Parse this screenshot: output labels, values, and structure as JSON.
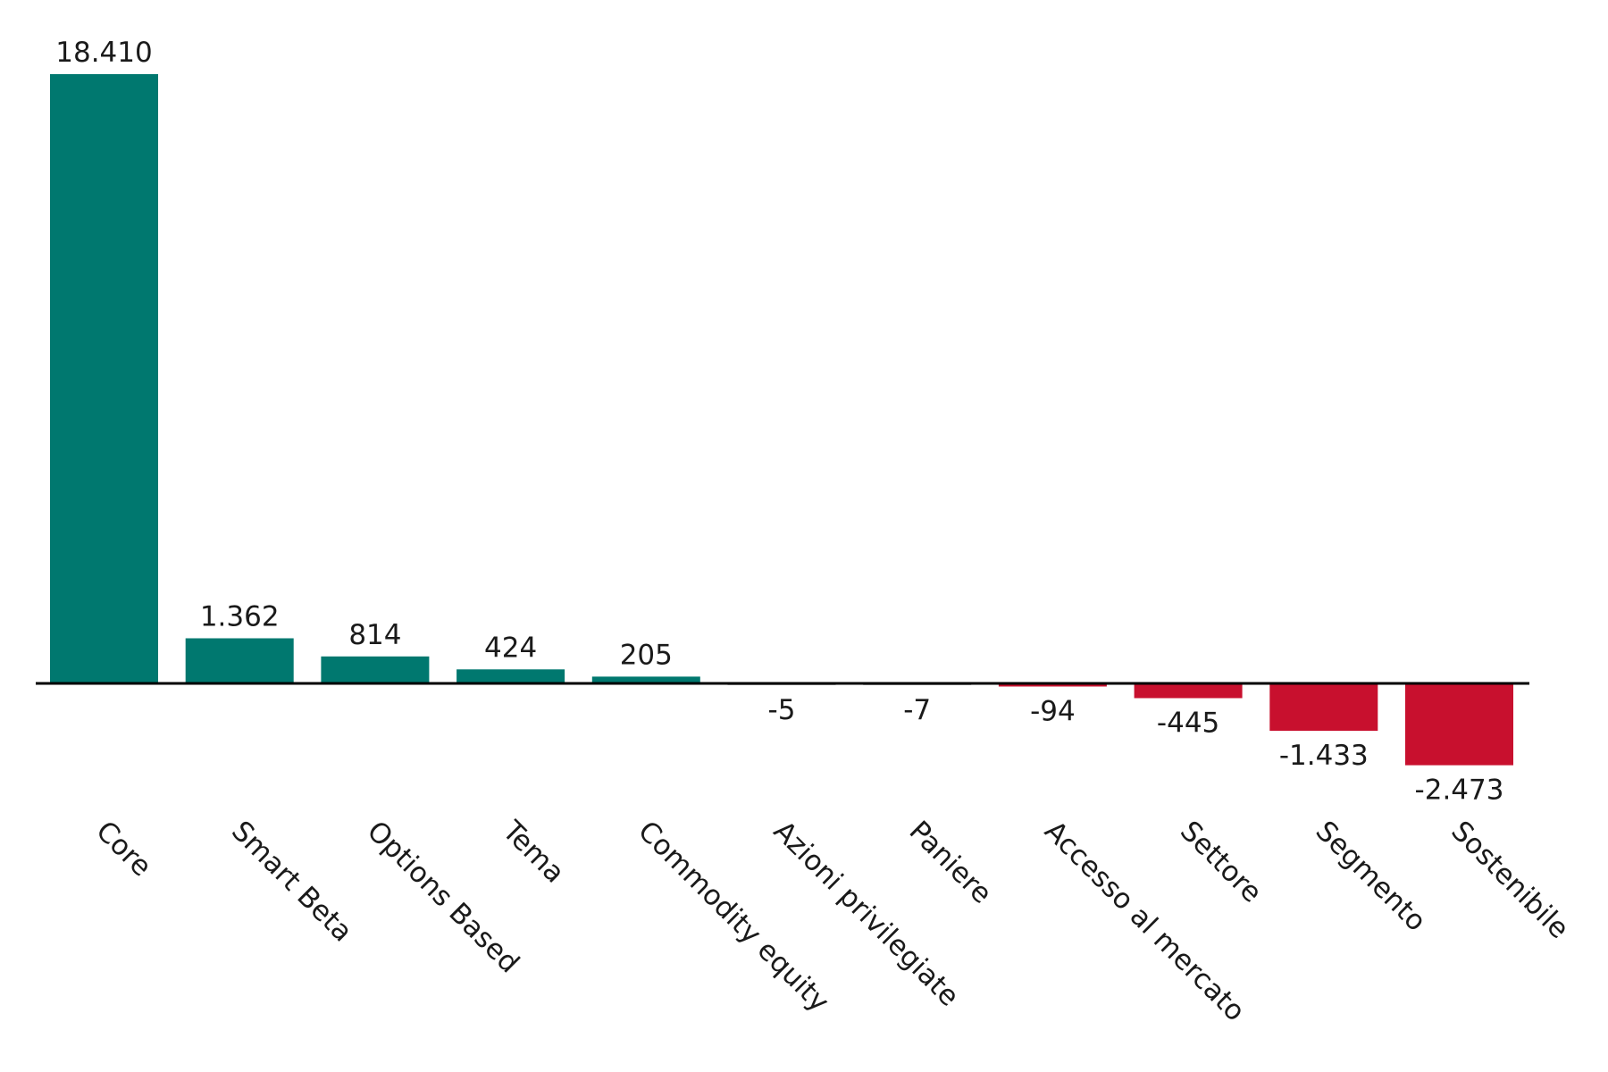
{
  "chart_data": {
    "type": "bar",
    "title": "",
    "xlabel": "",
    "ylabel": "",
    "categories": [
      "Core",
      "Smart Beta",
      "Options Based",
      "Tema",
      "Commodity equity",
      "Azioni privilegiate",
      "Paniere",
      "Accesso al mercato",
      "Settore",
      "Segmento",
      "Sostenibile"
    ],
    "values": [
      18410,
      1362,
      814,
      424,
      205,
      -5,
      -7,
      -94,
      -445,
      -1433,
      -2473
    ],
    "value_labels": [
      "18.410",
      "1.362",
      "814",
      "424",
      "205",
      "-5",
      "-7",
      "-94",
      "-445",
      "-1.433",
      "-2.473"
    ],
    "ylim": [
      -2473,
      18410
    ],
    "grid": false,
    "legend": "none",
    "colors": {
      "positive": "#00786F",
      "negative": "#C8102E",
      "axis": "#000000"
    }
  }
}
